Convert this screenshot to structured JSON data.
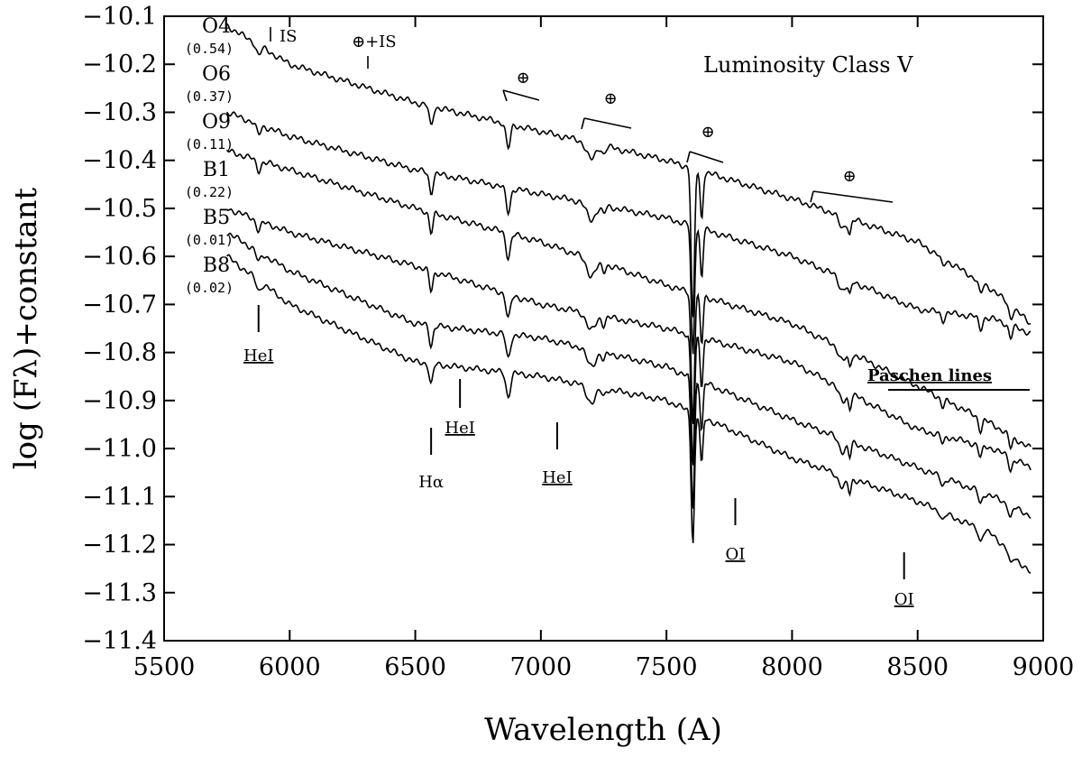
{
  "chart_data": {
    "type": "line",
    "title": "",
    "panel_label": "Luminosity Class V",
    "xlabel": "Wavelength (A)",
    "ylabel": "log (Fλ)+constant",
    "xlim": [
      5500,
      9000
    ],
    "ylim": [
      -11.4,
      -10.1
    ],
    "xticks": [
      5500,
      6000,
      6500,
      7000,
      7500,
      8000,
      8500,
      9000
    ],
    "yticks": [
      -10.1,
      -10.2,
      -10.3,
      -10.4,
      -10.5,
      -10.6,
      -10.7,
      -10.8,
      -10.9,
      -11.0,
      -11.1,
      -11.2,
      -11.3,
      -11.4
    ],
    "grid": false,
    "series": [
      {
        "name": "O4",
        "ebv": "(0.54)",
        "x": [
          5750,
          6000,
          6500,
          7000,
          7500,
          8000,
          8500,
          8800,
          8950
        ],
        "y": [
          -10.12,
          -10.2,
          -10.28,
          -10.34,
          -10.4,
          -10.48,
          -10.57,
          -10.67,
          -10.74
        ]
      },
      {
        "name": "O6",
        "ebv": "(0.37)",
        "x": [
          5750,
          6000,
          6500,
          7000,
          7500,
          8000,
          8500,
          8800,
          8950
        ],
        "y": [
          -10.3,
          -10.35,
          -10.42,
          -10.47,
          -10.52,
          -10.6,
          -10.71,
          -10.73,
          -10.76
        ]
      },
      {
        "name": "O9",
        "ebv": "(0.11)",
        "x": [
          5750,
          6000,
          6500,
          7000,
          7500,
          8000,
          8500,
          8800,
          8950
        ],
        "y": [
          -10.38,
          -10.42,
          -10.5,
          -10.57,
          -10.66,
          -10.74,
          -10.87,
          -10.95,
          -11.0
        ]
      },
      {
        "name": "B1",
        "ebv": "(0.22)",
        "x": [
          5750,
          6000,
          6500,
          7000,
          7500,
          8000,
          8500,
          8800,
          8950
        ],
        "y": [
          -10.5,
          -10.55,
          -10.62,
          -10.7,
          -10.75,
          -10.82,
          -10.96,
          -11.0,
          -11.04
        ]
      },
      {
        "name": "B5",
        "ebv": "(0.01)",
        "x": [
          5750,
          6000,
          6500,
          7000,
          7500,
          8000,
          8500,
          8800,
          8950
        ],
        "y": [
          -10.55,
          -10.63,
          -10.74,
          -10.77,
          -10.83,
          -10.94,
          -11.04,
          -11.1,
          -11.14
        ]
      },
      {
        "name": "B8",
        "ebv": "(0.02)",
        "x": [
          5750,
          6000,
          6500,
          7000,
          7500,
          8000,
          8500,
          8800,
          8950
        ],
        "y": [
          -10.6,
          -10.7,
          -10.82,
          -10.85,
          -10.9,
          -11.02,
          -11.11,
          -11.18,
          -11.26
        ]
      }
    ],
    "line_labels": [
      {
        "id": "hei-5876",
        "label": "HeI",
        "wavelength": 5876,
        "underline": true
      },
      {
        "id": "halpha",
        "label": "Hα",
        "wavelength": 6563,
        "underline": false
      },
      {
        "id": "hei-6678",
        "label": "HeI",
        "wavelength": 6678,
        "underline": true
      },
      {
        "id": "hei-7065",
        "label": "HeI",
        "wavelength": 7065,
        "underline": true
      },
      {
        "id": "oi-7774",
        "label": "OI",
        "wavelength": 7774,
        "underline": true
      },
      {
        "id": "oi-8446",
        "label": "OI",
        "wavelength": 8446,
        "underline": true
      },
      {
        "id": "paschen",
        "label": "Paschen lines",
        "wavelength": 8400,
        "underline": true
      }
    ],
    "telluric_labels": [
      {
        "id": "is-5890",
        "label": "IS",
        "wavelength": 5890
      },
      {
        "id": "telluric-is-6280",
        "label": "⊕+IS",
        "wavelength": 6280
      },
      {
        "id": "telluric-6870",
        "label": "⊕",
        "wavelength": 6870
      },
      {
        "id": "telluric-7200",
        "label": "⊕",
        "wavelength": 7200
      },
      {
        "id": "telluric-7600",
        "label": "⊕",
        "wavelength": 7600
      },
      {
        "id": "telluric-8200",
        "label": "⊕",
        "wavelength": 8200
      }
    ]
  }
}
